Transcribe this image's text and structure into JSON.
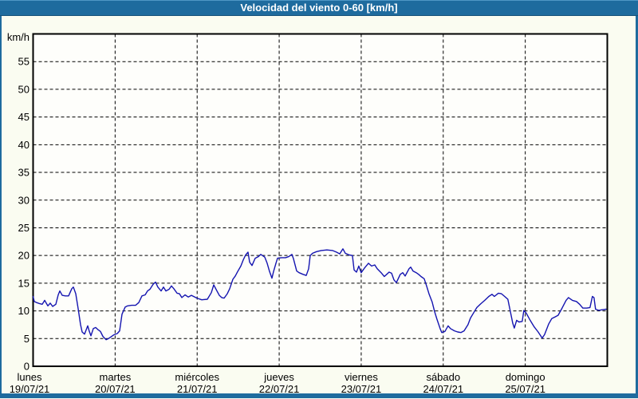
{
  "window": {
    "title": "Velocidad del viento 0-60 [km/h]",
    "colors": {
      "titlebar": "#1e6b9e",
      "titlebar_highlight": "#4f97c6",
      "titlebar_edge": "#155179",
      "frame": "#1e6b9e",
      "page_bg": "#fafcf1",
      "plot_bg": "#fefefb",
      "grid": "#000000",
      "axis_text": "#000000",
      "series_line": "#1414b0"
    }
  },
  "chart_data": {
    "type": "line",
    "title": "Velocidad del viento 0-60 [km/h]",
    "ylabel": "km/h",
    "xlabel": "",
    "grid": "dashed",
    "legend_position": "none",
    "y_axis": {
      "min": 0,
      "max": 60,
      "tick_step": 5,
      "tick_labels": [
        "0",
        "5",
        "10",
        "15",
        "20",
        "25",
        "30",
        "35",
        "40",
        "45",
        "50",
        "55"
      ]
    },
    "x_axis": {
      "unit": "days",
      "min": 0,
      "max": 7,
      "day_labels": [
        {
          "name": "lunes",
          "date": "19/07/21"
        },
        {
          "name": "martes",
          "date": "20/07/21"
        },
        {
          "name": "miércoles",
          "date": "21/07/21"
        },
        {
          "name": "jueves",
          "date": "22/07/21"
        },
        {
          "name": "viernes",
          "date": "23/07/21"
        },
        {
          "name": "sábado",
          "date": "24/07/21"
        },
        {
          "name": "domingo",
          "date": "25/07/21"
        }
      ]
    },
    "series": [
      {
        "name": "Velocidad del viento",
        "color": "#1414b0",
        "points": [
          [
            0,
            12.6
          ],
          [
            0.015,
            11.7
          ],
          [
            0.044,
            11.5
          ],
          [
            0.083,
            11.3
          ],
          [
            0.112,
            11.2
          ],
          [
            0.141,
            11.9
          ],
          [
            0.18,
            10.9
          ],
          [
            0.209,
            11.4
          ],
          [
            0.238,
            10.8
          ],
          [
            0.277,
            11.2
          ],
          [
            0.306,
            12.9
          ],
          [
            0.326,
            13.6
          ],
          [
            0.355,
            12.8
          ],
          [
            0.394,
            12.7
          ],
          [
            0.433,
            12.7
          ],
          [
            0.472,
            14
          ],
          [
            0.491,
            14.3
          ],
          [
            0.52,
            13.1
          ],
          [
            0.549,
            10.4
          ],
          [
            0.578,
            7.5
          ],
          [
            0.598,
            6.2
          ],
          [
            0.627,
            5.8
          ],
          [
            0.666,
            7.3
          ],
          [
            0.685,
            6.3
          ],
          [
            0.705,
            5.5
          ],
          [
            0.734,
            6.8
          ],
          [
            0.763,
            7
          ],
          [
            0.792,
            6.6
          ],
          [
            0.821,
            6.3
          ],
          [
            0.851,
            5.4
          ],
          [
            0.89,
            4.8
          ],
          [
            0.919,
            5
          ],
          [
            0.948,
            5.3
          ],
          [
            0.987,
            5.7
          ],
          [
            1.026,
            5.9
          ],
          [
            1.055,
            6.4
          ],
          [
            1.084,
            9.4
          ],
          [
            1.123,
            10.7
          ],
          [
            1.152,
            10.9
          ],
          [
            1.201,
            11
          ],
          [
            1.249,
            11
          ],
          [
            1.288,
            11.5
          ],
          [
            1.327,
            12.7
          ],
          [
            1.366,
            12.9
          ],
          [
            1.395,
            13.6
          ],
          [
            1.424,
            13.9
          ],
          [
            1.463,
            14.8
          ],
          [
            1.492,
            15.2
          ],
          [
            1.521,
            14.3
          ],
          [
            1.56,
            13.6
          ],
          [
            1.59,
            14.3
          ],
          [
            1.619,
            13.6
          ],
          [
            1.658,
            13.9
          ],
          [
            1.687,
            14.5
          ],
          [
            1.716,
            14
          ],
          [
            1.755,
            13.2
          ],
          [
            1.784,
            13.1
          ],
          [
            1.813,
            12.4
          ],
          [
            1.852,
            12.9
          ],
          [
            1.891,
            12.5
          ],
          [
            1.93,
            12.8
          ],
          [
            1.998,
            12.3
          ],
          [
            2.056,
            12
          ],
          [
            2.124,
            12.1
          ],
          [
            2.173,
            13.3
          ],
          [
            2.202,
            14.7
          ],
          [
            2.241,
            13.6
          ],
          [
            2.27,
            12.8
          ],
          [
            2.299,
            12.4
          ],
          [
            2.328,
            12.3
          ],
          [
            2.367,
            13.1
          ],
          [
            2.397,
            14
          ],
          [
            2.435,
            15.7
          ],
          [
            2.465,
            16.3
          ],
          [
            2.494,
            17.1
          ],
          [
            2.533,
            18.1
          ],
          [
            2.562,
            19.2
          ],
          [
            2.591,
            20.1
          ],
          [
            2.62,
            20.6
          ],
          [
            2.64,
            18.8
          ],
          [
            2.669,
            18.2
          ],
          [
            2.708,
            19.5
          ],
          [
            2.746,
            19.8
          ],
          [
            2.776,
            20.2
          ],
          [
            2.824,
            19.7
          ],
          [
            2.853,
            18.6
          ],
          [
            2.883,
            17.1
          ],
          [
            2.912,
            15.9
          ],
          [
            2.931,
            17.1
          ],
          [
            2.96,
            18.6
          ],
          [
            2.98,
            19.5
          ],
          [
            3.028,
            19.6
          ],
          [
            3.077,
            19.6
          ],
          [
            3.116,
            19.8
          ],
          [
            3.155,
            20.2
          ],
          [
            3.174,
            19.4
          ],
          [
            3.213,
            17.2
          ],
          [
            3.242,
            16.9
          ],
          [
            3.291,
            16.6
          ],
          [
            3.33,
            16.4
          ],
          [
            3.359,
            17.6
          ],
          [
            3.378,
            20
          ],
          [
            3.407,
            20.4
          ],
          [
            3.456,
            20.7
          ],
          [
            3.514,
            20.9
          ],
          [
            3.582,
            21
          ],
          [
            3.65,
            20.9
          ],
          [
            3.699,
            20.6
          ],
          [
            3.738,
            20.3
          ],
          [
            3.777,
            21.2
          ],
          [
            3.806,
            20.4
          ],
          [
            3.854,
            20.1
          ],
          [
            3.893,
            20
          ],
          [
            3.913,
            17.4
          ],
          [
            3.942,
            17
          ],
          [
            3.971,
            18.1
          ],
          [
            4,
            16.9
          ],
          [
            4.039,
            17.7
          ],
          [
            4.088,
            18.6
          ],
          [
            4.126,
            18.1
          ],
          [
            4.165,
            18.3
          ],
          [
            4.195,
            17.6
          ],
          [
            4.243,
            16.9
          ],
          [
            4.282,
            16.2
          ],
          [
            4.311,
            16.6
          ],
          [
            4.34,
            17
          ],
          [
            4.37,
            16.8
          ],
          [
            4.399,
            15.6
          ],
          [
            4.428,
            15.1
          ],
          [
            4.476,
            16.6
          ],
          [
            4.506,
            16.9
          ],
          [
            4.535,
            16.3
          ],
          [
            4.583,
            17.6
          ],
          [
            4.603,
            17.9
          ],
          [
            4.632,
            17.2
          ],
          [
            4.671,
            16.9
          ],
          [
            4.7,
            16.6
          ],
          [
            4.729,
            16.2
          ],
          [
            4.768,
            15.8
          ],
          [
            4.797,
            14.5
          ],
          [
            4.826,
            13.1
          ],
          [
            4.865,
            11.6
          ],
          [
            4.894,
            9.9
          ],
          [
            4.923,
            8.5
          ],
          [
            4.962,
            6.8
          ],
          [
            4.982,
            6.1
          ],
          [
            5.021,
            6.3
          ],
          [
            5.059,
            7.3
          ],
          [
            5.089,
            6.8
          ],
          [
            5.137,
            6.4
          ],
          [
            5.176,
            6.2
          ],
          [
            5.215,
            6.1
          ],
          [
            5.254,
            6.4
          ],
          [
            5.302,
            7.5
          ],
          [
            5.332,
            8.7
          ],
          [
            5.38,
            9.9
          ],
          [
            5.409,
            10.6
          ],
          [
            5.458,
            11.3
          ],
          [
            5.506,
            11.9
          ],
          [
            5.555,
            12.6
          ],
          [
            5.594,
            13
          ],
          [
            5.623,
            12.6
          ],
          [
            5.672,
            13.2
          ],
          [
            5.71,
            13.1
          ],
          [
            5.749,
            12.6
          ],
          [
            5.788,
            12.1
          ],
          [
            5.817,
            10
          ],
          [
            5.847,
            7.8
          ],
          [
            5.866,
            6.9
          ],
          [
            5.895,
            8.3
          ],
          [
            5.924,
            8
          ],
          [
            5.963,
            8.1
          ],
          [
            5.983,
            10.1
          ],
          [
            6.012,
            9.6
          ],
          [
            6.06,
            8.3
          ],
          [
            6.109,
            7.1
          ],
          [
            6.157,
            6.2
          ],
          [
            6.206,
            5.1
          ],
          [
            6.235,
            5.7
          ],
          [
            6.284,
            7.6
          ],
          [
            6.322,
            8.6
          ],
          [
            6.361,
            8.9
          ],
          [
            6.4,
            9.2
          ],
          [
            6.449,
            10.5
          ],
          [
            6.497,
            11.9
          ],
          [
            6.527,
            12.4
          ],
          [
            6.575,
            11.9
          ],
          [
            6.624,
            11.7
          ],
          [
            6.663,
            11.2
          ],
          [
            6.702,
            10.5
          ],
          [
            6.75,
            10.5
          ],
          [
            6.789,
            10.6
          ],
          [
            6.818,
            12.6
          ],
          [
            6.838,
            12.4
          ],
          [
            6.857,
            10.3
          ],
          [
            6.896,
            10.1
          ],
          [
            6.935,
            10.2
          ],
          [
            6.984,
            10.3
          ]
        ]
      }
    ]
  }
}
